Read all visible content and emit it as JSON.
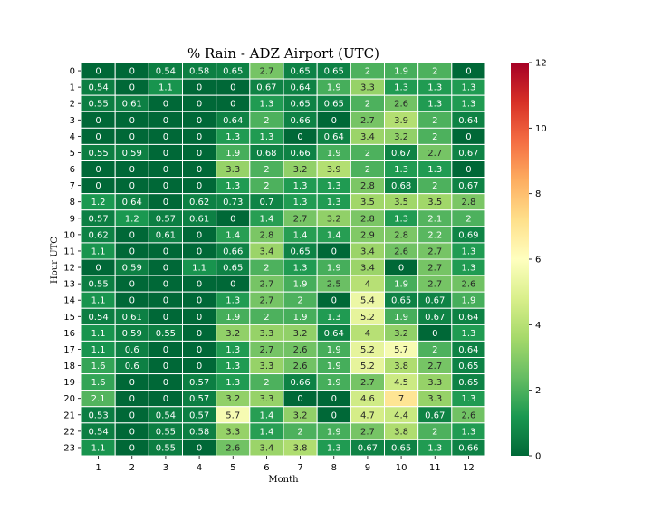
{
  "chart_data": {
    "type": "heatmap",
    "title": "% Rain - ADZ Airport (UTC)",
    "xlabel": "Month",
    "ylabel": "Hour UTC",
    "x_categories": [
      "1",
      "2",
      "3",
      "4",
      "5",
      "6",
      "7",
      "8",
      "9",
      "10",
      "11",
      "12"
    ],
    "y_categories": [
      "0",
      "1",
      "2",
      "3",
      "4",
      "5",
      "6",
      "7",
      "8",
      "9",
      "10",
      "11",
      "12",
      "13",
      "14",
      "15",
      "16",
      "17",
      "18",
      "19",
      "20",
      "21",
      "22",
      "23"
    ],
    "values": [
      [
        0,
        0,
        0.54,
        0.58,
        0.65,
        2.7,
        0.65,
        0.65,
        2,
        1.9,
        2,
        0
      ],
      [
        0.54,
        0,
        1.1,
        0,
        0,
        0.67,
        0.64,
        1.9,
        3.3,
        1.3,
        1.3,
        1.3
      ],
      [
        0.55,
        0.61,
        0,
        0,
        0,
        1.3,
        0.65,
        0.65,
        2,
        2.6,
        1.3,
        1.3
      ],
      [
        0,
        0,
        0,
        0,
        0.64,
        2,
        0.66,
        0,
        2.7,
        3.9,
        2,
        0.64
      ],
      [
        0,
        0,
        0,
        0,
        1.3,
        1.3,
        0,
        0.64,
        3.4,
        3.2,
        2,
        0
      ],
      [
        0.55,
        0.59,
        0,
        0,
        1.9,
        0.68,
        0.66,
        1.9,
        2,
        0.67,
        2.7,
        0.67
      ],
      [
        0,
        0,
        0,
        0,
        3.3,
        2,
        3.2,
        3.9,
        2,
        1.3,
        1.3,
        0
      ],
      [
        0,
        0,
        0,
        0,
        1.3,
        2,
        1.3,
        1.3,
        2.8,
        0.68,
        2,
        0.67
      ],
      [
        1.2,
        0.64,
        0,
        0.62,
        0.73,
        0.7,
        1.3,
        1.3,
        3.5,
        3.5,
        3.5,
        2.8
      ],
      [
        0.57,
        1.2,
        0.57,
        0.61,
        0,
        1.4,
        2.7,
        3.2,
        2.8,
        1.3,
        2.1,
        2
      ],
      [
        0.62,
        0,
        0.61,
        0,
        1.4,
        2.8,
        1.4,
        1.4,
        2.9,
        2.8,
        2.2,
        0.69
      ],
      [
        1.1,
        0,
        0,
        0,
        0.66,
        3.4,
        0.65,
        0,
        3.4,
        2.6,
        2.7,
        1.3
      ],
      [
        0,
        0.59,
        0,
        1.1,
        0.65,
        2,
        1.3,
        1.9,
        3.4,
        0,
        2.7,
        1.3
      ],
      [
        0.55,
        0,
        0,
        0,
        0,
        2.7,
        1.9,
        2.5,
        4,
        1.9,
        2.7,
        2.6
      ],
      [
        1.1,
        0,
        0,
        0,
        1.3,
        2.7,
        2,
        0,
        5.4,
        0.65,
        0.67,
        1.9
      ],
      [
        0.54,
        0.61,
        0,
        0,
        1.9,
        2,
        1.9,
        1.3,
        5.2,
        1.9,
        0.67,
        0.64
      ],
      [
        1.1,
        0.59,
        0.55,
        0,
        3.2,
        3.3,
        3.2,
        0.64,
        4,
        3.2,
        0,
        1.3
      ],
      [
        1.1,
        0.6,
        0,
        0,
        1.3,
        2.7,
        2.6,
        1.9,
        5.2,
        5.7,
        2,
        0.64
      ],
      [
        1.6,
        0.6,
        0,
        0,
        1.3,
        3.3,
        2.6,
        1.9,
        5.2,
        3.8,
        2.7,
        0.65
      ],
      [
        1.6,
        0,
        0,
        0.57,
        1.3,
        2,
        0.66,
        1.9,
        2.7,
        4.5,
        3.3,
        0.65
      ],
      [
        2.1,
        0,
        0,
        0.57,
        3.2,
        3.3,
        0,
        0,
        4.6,
        7,
        3.3,
        1.3
      ],
      [
        0.53,
        0,
        0.54,
        0.57,
        5.7,
        1.4,
        3.2,
        0,
        4.7,
        4.4,
        0.67,
        2.6
      ],
      [
        0.54,
        0,
        0.55,
        0.58,
        3.3,
        1.4,
        2,
        1.9,
        2.7,
        3.8,
        2,
        1.3
      ],
      [
        1.1,
        0,
        0.55,
        0,
        2.6,
        3.4,
        3.8,
        1.3,
        0.67,
        0.65,
        1.3,
        0.66
      ]
    ],
    "colorbar": {
      "range": [
        0,
        12
      ],
      "ticks": [
        "0",
        "2",
        "4",
        "6",
        "8",
        "10",
        "12"
      ],
      "colormap": "RdYlGn_r"
    },
    "grid": false,
    "legend": "colorbar-right"
  }
}
